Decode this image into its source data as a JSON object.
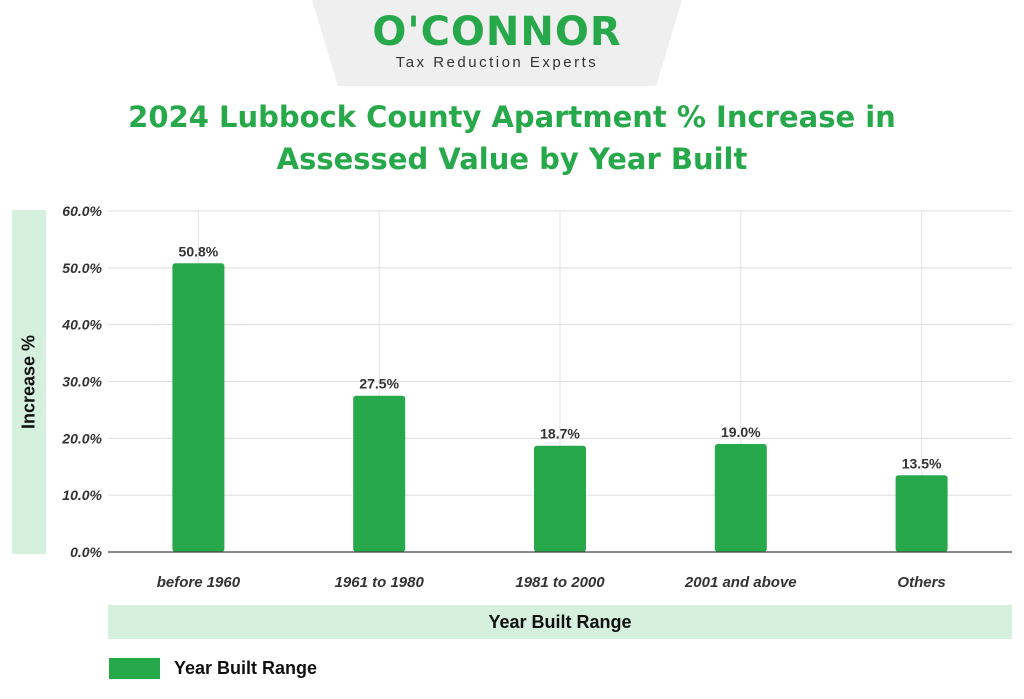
{
  "logo": {
    "name": "O'CONNOR",
    "tagline": "Tax Reduction Experts"
  },
  "chart_data": {
    "type": "bar",
    "title": "2024 Lubbock County Apartment % Increase in Assessed Value by Year Built",
    "xlabel": "Year Built Range",
    "ylabel": "Increase %",
    "categories": [
      "before 1960",
      "1961 to 1980",
      "1981 to 2000",
      "2001 and above",
      "Others"
    ],
    "series": [
      {
        "name": "Year Built Range",
        "values": [
          50.8,
          27.5,
          18.7,
          19.0,
          13.5
        ]
      }
    ],
    "data_labels": [
      "50.8%",
      "27.5%",
      "18.7%",
      "19.0%",
      "13.5%"
    ],
    "ylim": [
      0,
      60
    ],
    "y_ticks": [
      "0.0%",
      "10.0%",
      "20.0%",
      "30.0%",
      "40.0%",
      "50.0%",
      "60.0%"
    ],
    "grid": true,
    "legend_position": "bottom-left",
    "colors": {
      "bar": "#27a84a",
      "title": "#27a84a",
      "label_band": "#d5f0dc"
    }
  }
}
